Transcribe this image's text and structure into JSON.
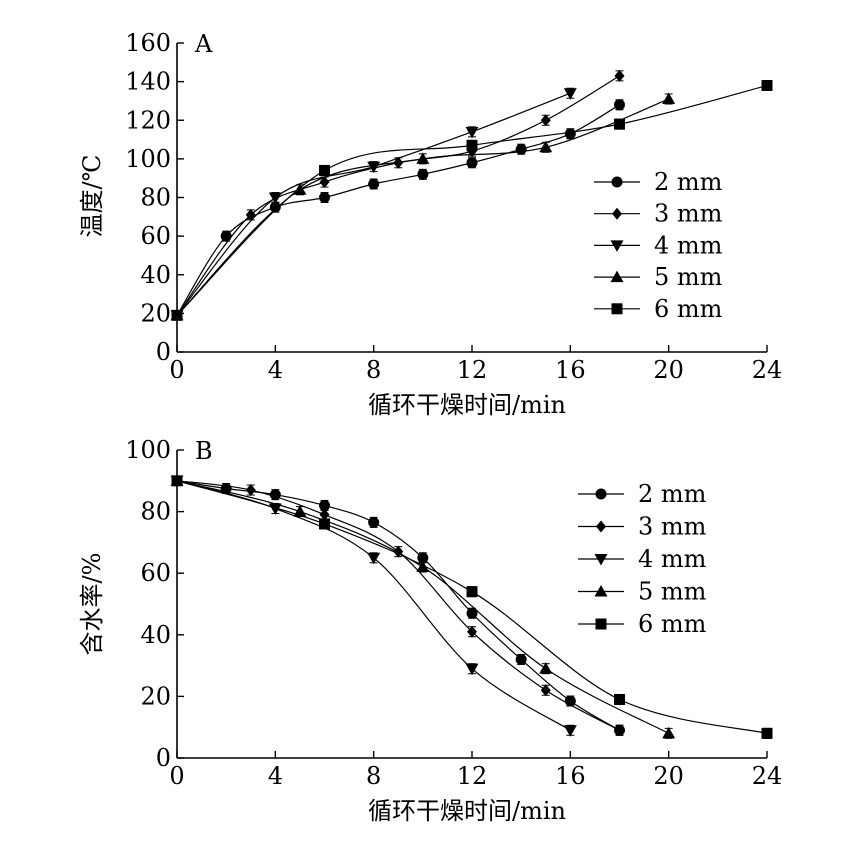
{
  "chart_data": [
    {
      "panel_label": "A",
      "type": "line",
      "title": "",
      "xlabel": "循环干燥时间/min",
      "ylabel": "温度/℃",
      "xlim": [
        0,
        24
      ],
      "ylim": [
        0,
        160
      ],
      "x_ticks": [
        "0",
        "4",
        "8",
        "12",
        "16",
        "20",
        "24"
      ],
      "y_ticks": [
        "0",
        "20",
        "40",
        "60",
        "80",
        "100",
        "120",
        "140",
        "160"
      ],
      "grid": false,
      "legend_position": "right",
      "series": [
        {
          "name": "2 mm",
          "marker": "circle",
          "points": [
            [
              0,
              19
            ],
            [
              2,
              60
            ],
            [
              4,
              75
            ],
            [
              6,
              80
            ],
            [
              8,
              87
            ],
            [
              10,
              92
            ],
            [
              12,
              98
            ],
            [
              14,
              105
            ],
            [
              16,
              113
            ],
            [
              18,
              128
            ]
          ]
        },
        {
          "name": "3 mm",
          "marker": "diamond",
          "points": [
            [
              0,
              19
            ],
            [
              3,
              71
            ],
            [
              6,
              88
            ],
            [
              9,
              98
            ],
            [
              12,
              104
            ],
            [
              15,
              120
            ],
            [
              18,
              143
            ]
          ]
        },
        {
          "name": "4 mm",
          "marker": "triangle-down",
          "points": [
            [
              0,
              19
            ],
            [
              4,
              80
            ],
            [
              8,
              96
            ],
            [
              12,
              114
            ],
            [
              16,
              134
            ]
          ]
        },
        {
          "name": "5 mm",
          "marker": "triangle-up",
          "points": [
            [
              0,
              19
            ],
            [
              5,
              84
            ],
            [
              10,
              100
            ],
            [
              15,
              106
            ],
            [
              20,
              131
            ]
          ]
        },
        {
          "name": "6 mm",
          "marker": "square",
          "points": [
            [
              0,
              19
            ],
            [
              6,
              94
            ],
            [
              12,
              107
            ],
            [
              18,
              118
            ],
            [
              24,
              138
            ]
          ]
        }
      ]
    },
    {
      "panel_label": "B",
      "type": "line",
      "title": "",
      "xlabel": "循环干燥时间/min",
      "ylabel": "含水率/%",
      "xlim": [
        0,
        24
      ],
      "ylim": [
        0,
        100
      ],
      "x_ticks": [
        "0",
        "4",
        "8",
        "12",
        "16",
        "20",
        "24"
      ],
      "y_ticks": [
        "0",
        "20",
        "40",
        "60",
        "80",
        "100"
      ],
      "grid": false,
      "legend_position": "top-right",
      "series": [
        {
          "name": "2 mm",
          "marker": "circle",
          "points": [
            [
              0,
              90
            ],
            [
              2,
              87.5
            ],
            [
              4,
              85.5
            ],
            [
              6,
              82
            ],
            [
              8,
              76.5
            ],
            [
              10,
              65
            ],
            [
              12,
              47
            ],
            [
              14,
              32
            ],
            [
              16,
              18.5
            ],
            [
              18,
              9
            ]
          ]
        },
        {
          "name": "3 mm",
          "marker": "diamond",
          "points": [
            [
              0,
              90
            ],
            [
              3,
              87
            ],
            [
              6,
              79
            ],
            [
              9,
              67
            ],
            [
              12,
              41
            ],
            [
              15,
              22
            ],
            [
              18,
              9
            ]
          ]
        },
        {
          "name": "4 mm",
          "marker": "triangle-down",
          "points": [
            [
              0,
              90
            ],
            [
              4,
              81
            ],
            [
              8,
              65
            ],
            [
              12,
              29
            ],
            [
              16,
              9
            ]
          ]
        },
        {
          "name": "5 mm",
          "marker": "triangle-up",
          "points": [
            [
              0,
              90
            ],
            [
              5,
              80
            ],
            [
              10,
              62
            ],
            [
              15,
              29
            ],
            [
              20,
              8
            ]
          ]
        },
        {
          "name": "6 mm",
          "marker": "square",
          "points": [
            [
              0,
              90
            ],
            [
              6,
              76
            ],
            [
              12,
              54
            ],
            [
              18,
              19
            ],
            [
              24,
              8
            ]
          ]
        }
      ]
    }
  ]
}
